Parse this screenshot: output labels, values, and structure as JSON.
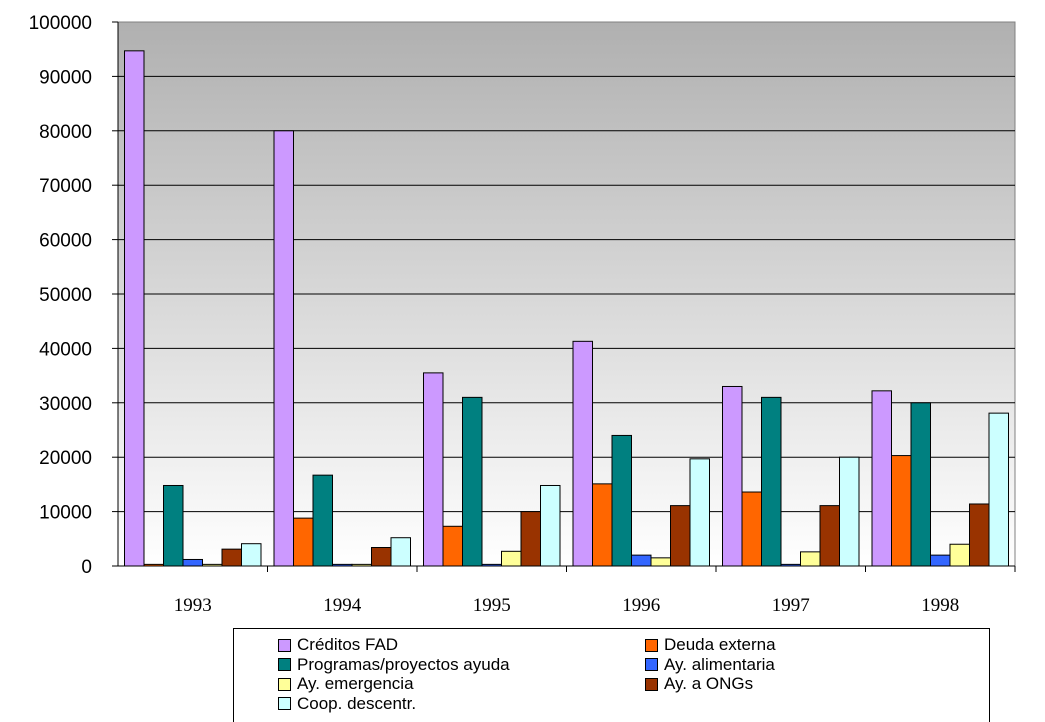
{
  "chart_data": {
    "type": "bar",
    "categories": [
      "1993",
      "1994",
      "1995",
      "1996",
      "1997",
      "1998"
    ],
    "ylim": [
      0,
      100000
    ],
    "yticks": [
      0,
      10000,
      20000,
      30000,
      40000,
      50000,
      60000,
      70000,
      80000,
      90000,
      100000
    ],
    "ytick_labels": [
      "0",
      "10000",
      "20000",
      "30000",
      "40000",
      "50000",
      "60000",
      "70000",
      "80000",
      "90000",
      "100000"
    ],
    "grid": true,
    "legend_position": "bottom",
    "series": [
      {
        "name": "Créditos FAD",
        "color": "#cc99ff",
        "values": [
          94700,
          80000,
          35500,
          41300,
          33000,
          32200
        ]
      },
      {
        "name": "Deuda externa",
        "color": "#ff6600",
        "values": [
          300,
          8800,
          7300,
          15100,
          13600,
          20300
        ]
      },
      {
        "name": "Programas/proyectos ayuda",
        "color": "#008080",
        "values": [
          14800,
          16700,
          31000,
          24000,
          31000,
          30000
        ]
      },
      {
        "name": "Ay. alimentaria",
        "color": "#3366ff",
        "values": [
          1200,
          300,
          300,
          2000,
          300,
          2000
        ]
      },
      {
        "name": "Ay. emergencia",
        "color": "#ffff99",
        "values": [
          300,
          300,
          2700,
          1500,
          2600,
          4000
        ]
      },
      {
        "name": "Ay. a ONGs",
        "color": "#993300",
        "values": [
          3100,
          3400,
          10000,
          11100,
          11100,
          11400
        ]
      },
      {
        "name": "Coop. descentr.",
        "color": "#ccffff",
        "values": [
          4100,
          5200,
          14800,
          19700,
          20000,
          28100
        ]
      }
    ]
  }
}
